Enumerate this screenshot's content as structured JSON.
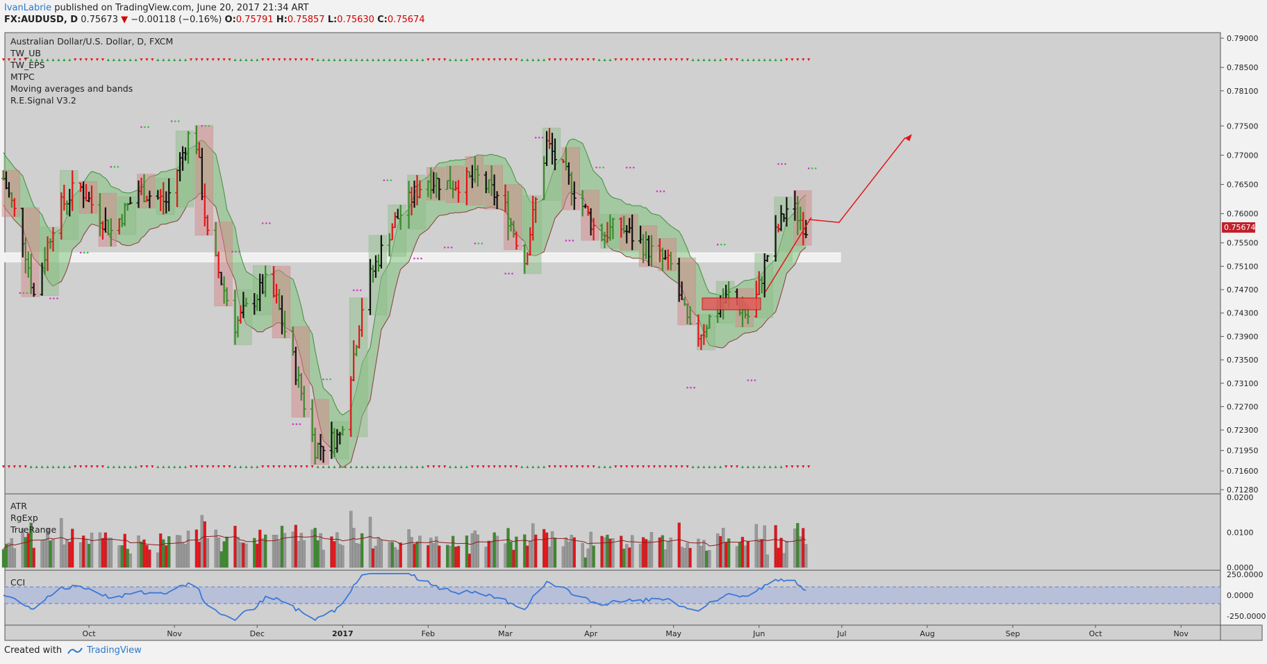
{
  "header": {
    "author": "IvanLabrie",
    "published_text": "published on TradingView.com, June 20, 2017 21:34 ART"
  },
  "quote": {
    "symbol": "FX:AUDUSD, D",
    "last": "0.75673",
    "change": "−0.00118 (−0.16%)",
    "o_label": "O:",
    "o": "0.75791",
    "h_label": "H:",
    "h": "0.75857",
    "l_label": "L:",
    "l": "0.75630",
    "c_label": "C:",
    "c": "0.75674"
  },
  "main_labels": {
    "title": "Australian Dollar/U.S. Dollar, D, FXCM",
    "indicators": [
      "TW_UB",
      "TW_EPS",
      "MTPC",
      "Moving averages and bands",
      "R.E.Signal V3.2"
    ]
  },
  "price_badge": "0.75674",
  "atr_labels": [
    "ATR",
    "RgExp",
    "TrueRange"
  ],
  "cci_label": "CCI",
  "footer": {
    "created_with": "Created with",
    "brand": "TradingView"
  },
  "colors": {
    "up": "#3c8a2e",
    "down": "#e0161b",
    "neutral": "#111111",
    "cci_line": "#3b78d9",
    "band_green": "#6fbf6a",
    "band_red": "#c46666"
  },
  "chart_data": [
    {
      "type": "candlestick",
      "name": "price",
      "title": "Australian Dollar/U.S. Dollar, D, FXCM",
      "y_ticks": [
        "0.79000",
        "0.78500",
        "0.78100",
        "0.77500",
        "0.77000",
        "0.76500",
        "0.76000",
        "0.75500",
        "0.75100",
        "0.74700",
        "0.74300",
        "0.73900",
        "0.73500",
        "0.73100",
        "0.72700",
        "0.72300",
        "0.71950",
        "0.71600",
        "0.71280"
      ],
      "ylim": [
        0.7128,
        0.79
      ],
      "x_ticks": [
        "Oct",
        "Nov",
        "Dec",
        "2017",
        "Feb",
        "Mar",
        "Apr",
        "May",
        "Jun",
        "Jul",
        "Aug",
        "Sep",
        "Oct",
        "Nov"
      ],
      "support_zone": [
        0.7512,
        0.7526
      ],
      "close_path_approx": [
        {
          "t": "Sep 1",
          "v": 0.766
        },
        {
          "t": "Sep 8",
          "v": 0.756
        },
        {
          "t": "Sep 12",
          "v": 0.746
        },
        {
          "t": "Sep 20",
          "v": 0.76
        },
        {
          "t": "Sep 28",
          "v": 0.765
        },
        {
          "t": "Oct 10",
          "v": 0.757
        },
        {
          "t": "Oct 20",
          "v": 0.764
        },
        {
          "t": "Oct 30",
          "v": 0.762
        },
        {
          "t": "Nov 4",
          "v": 0.769
        },
        {
          "t": "Nov 9",
          "v": 0.776
        },
        {
          "t": "Nov 14",
          "v": 0.756
        },
        {
          "t": "Nov 24",
          "v": 0.741
        },
        {
          "t": "Dec 5",
          "v": 0.748
        },
        {
          "t": "Dec 9",
          "v": 0.745
        },
        {
          "t": "Dec 15",
          "v": 0.735
        },
        {
          "t": "Dec 23",
          "v": 0.72
        },
        {
          "t": "Jan 1",
          "v": 0.722
        },
        {
          "t": "Jan 10",
          "v": 0.747
        },
        {
          "t": "Jan 20",
          "v": 0.758
        },
        {
          "t": "Feb 1",
          "v": 0.766
        },
        {
          "t": "Feb 10",
          "v": 0.765
        },
        {
          "t": "Feb 20",
          "v": 0.766
        },
        {
          "t": "Mar 1",
          "v": 0.762
        },
        {
          "t": "Mar 9",
          "v": 0.752
        },
        {
          "t": "Mar 17",
          "v": 0.772
        },
        {
          "t": "Mar 27",
          "v": 0.764
        },
        {
          "t": "Apr 5",
          "v": 0.756
        },
        {
          "t": "Apr 12",
          "v": 0.758
        },
        {
          "t": "Apr 20",
          "v": 0.755
        },
        {
          "t": "May 1",
          "v": 0.751
        },
        {
          "t": "May 9",
          "v": 0.738
        },
        {
          "t": "May 15",
          "v": 0.742
        },
        {
          "t": "May 22",
          "v": 0.746
        },
        {
          "t": "May 30",
          "v": 0.742
        },
        {
          "t": "Jun 5",
          "v": 0.753
        },
        {
          "t": "Jun 13",
          "v": 0.762
        },
        {
          "t": "Jun 20",
          "v": 0.75674
        }
      ],
      "projection_approx": [
        {
          "t": "Jun 20",
          "v": 0.759
        },
        {
          "t": "Jul 1",
          "v": 0.7585
        },
        {
          "t": "Jul 25",
          "v": 0.773
        }
      ]
    },
    {
      "type": "bar",
      "name": "ATR / TrueRange",
      "y_ticks": [
        "0.0200",
        "0.0100",
        "0.0000"
      ],
      "ylim": [
        0,
        0.02
      ]
    },
    {
      "type": "line",
      "name": "CCI",
      "y_ticks": [
        "250.0000",
        "0.0000",
        "-250.0000"
      ],
      "band": [
        -100,
        100
      ],
      "ylim": [
        -330,
        280
      ]
    }
  ]
}
